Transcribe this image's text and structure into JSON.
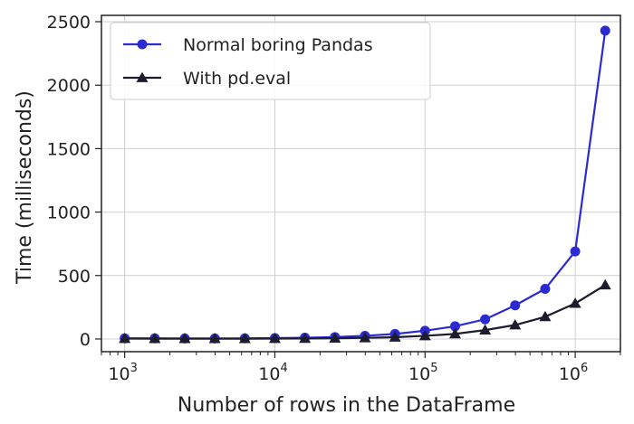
{
  "chart_data": {
    "type": "line",
    "title": "",
    "xlabel": "Number of rows in the DataFrame",
    "ylabel": "Time (milliseconds)",
    "xscale": "log",
    "xlim": [
      700,
      2000000
    ],
    "ylim": [
      -100,
      2550
    ],
    "grid": true,
    "legend_position": "top-left",
    "x_ticks": [
      {
        "value": 1000,
        "base": "10",
        "exp": "3"
      },
      {
        "value": 10000,
        "base": "10",
        "exp": "4"
      },
      {
        "value": 100000,
        "base": "10",
        "exp": "5"
      },
      {
        "value": 1000000,
        "base": "10",
        "exp": "6"
      }
    ],
    "y_ticks": [
      {
        "value": 0,
        "label": "0"
      },
      {
        "value": 500,
        "label": "500"
      },
      {
        "value": 1000,
        "label": "1000"
      },
      {
        "value": 1500,
        "label": "1500"
      },
      {
        "value": 2000,
        "label": "2000"
      },
      {
        "value": 2500,
        "label": "2500"
      }
    ],
    "x": [
      1000,
      1585,
      2512,
      3981,
      6310,
      10000,
      15849,
      25119,
      39811,
      63096,
      100000,
      158489,
      251189,
      398107,
      630957,
      1000000,
      1584893
    ],
    "series": [
      {
        "name": "Normal boring Pandas",
        "color": "#2b2bd1",
        "marker": "circle",
        "values": [
          5,
          5,
          4,
          4,
          5,
          7,
          10,
          15,
          25,
          40,
          65,
          100,
          155,
          265,
          395,
          690,
          2430
        ]
      },
      {
        "name": "With pd.eval",
        "color": "#1c1c2e",
        "marker": "triangle",
        "values": [
          3,
          2,
          2,
          2,
          2,
          3,
          4,
          6,
          9,
          14,
          25,
          40,
          70,
          110,
          175,
          280,
          425
        ]
      }
    ]
  }
}
